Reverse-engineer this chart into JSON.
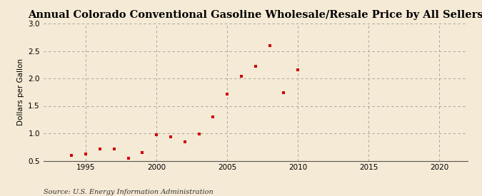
{
  "years": [
    1994,
    1995,
    1996,
    1997,
    1998,
    1999,
    2000,
    2001,
    2002,
    2003,
    2004,
    2005,
    2006,
    2007,
    2008,
    2009,
    2010
  ],
  "values": [
    0.6,
    0.62,
    0.72,
    0.72,
    0.55,
    0.65,
    0.97,
    0.94,
    0.85,
    0.99,
    1.3,
    1.72,
    2.04,
    2.22,
    2.6,
    1.74,
    2.15
  ],
  "title": "Annual Colorado Conventional Gasoline Wholesale/Resale Price by All Sellers",
  "ylabel": "Dollars per Gallon",
  "source": "Source: U.S. Energy Information Administration",
  "marker_color": "#cc0000",
  "marker": "s",
  "marker_size": 3.5,
  "background_color": "#f5ead5",
  "grid_color": "#999999",
  "xlim": [
    1992,
    2022
  ],
  "ylim": [
    0.5,
    3.0
  ],
  "xticks": [
    1995,
    2000,
    2005,
    2010,
    2015,
    2020
  ],
  "yticks": [
    0.5,
    1.0,
    1.5,
    2.0,
    2.5,
    3.0
  ],
  "title_fontsize": 10.5,
  "label_fontsize": 7.5,
  "tick_fontsize": 7.5,
  "source_fontsize": 7
}
